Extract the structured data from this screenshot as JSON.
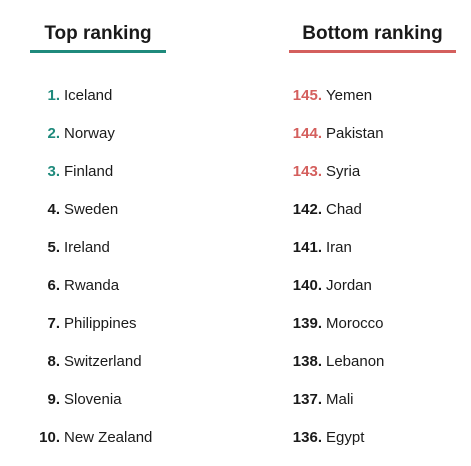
{
  "chart_data": {
    "type": "table",
    "columns": [
      {
        "id": "top",
        "title": "Top ranking",
        "accent_color": "#1f8a7c",
        "rows": [
          {
            "rank": "1.",
            "country": "Iceland",
            "highlight": true
          },
          {
            "rank": "2.",
            "country": "Norway",
            "highlight": true
          },
          {
            "rank": "3.",
            "country": "Finland",
            "highlight": true
          },
          {
            "rank": "4.",
            "country": "Sweden",
            "highlight": false
          },
          {
            "rank": "5.",
            "country": "Ireland",
            "highlight": false
          },
          {
            "rank": "6.",
            "country": "Rwanda",
            "highlight": false
          },
          {
            "rank": "7.",
            "country": "Philippines",
            "highlight": false
          },
          {
            "rank": "8.",
            "country": "Switzerland",
            "highlight": false
          },
          {
            "rank": "9.",
            "country": "Slovenia",
            "highlight": false
          },
          {
            "rank": "10.",
            "country": "New Zealand",
            "highlight": false
          }
        ]
      },
      {
        "id": "bottom",
        "title": "Bottom ranking",
        "accent_color": "#d45f5d",
        "rows": [
          {
            "rank": "145.",
            "country": "Yemen",
            "highlight": true
          },
          {
            "rank": "144.",
            "country": "Pakistan",
            "highlight": true
          },
          {
            "rank": "143.",
            "country": "Syria",
            "highlight": true
          },
          {
            "rank": "142.",
            "country": "Chad",
            "highlight": false
          },
          {
            "rank": "141.",
            "country": "Iran",
            "highlight": false
          },
          {
            "rank": "140.",
            "country": "Jordan",
            "highlight": false
          },
          {
            "rank": "139.",
            "country": "Morocco",
            "highlight": false
          },
          {
            "rank": "138.",
            "country": "Lebanon",
            "highlight": false
          },
          {
            "rank": "137.",
            "country": "Mali",
            "highlight": false
          },
          {
            "rank": "136.",
            "country": "Egypt",
            "highlight": false
          }
        ]
      }
    ]
  }
}
